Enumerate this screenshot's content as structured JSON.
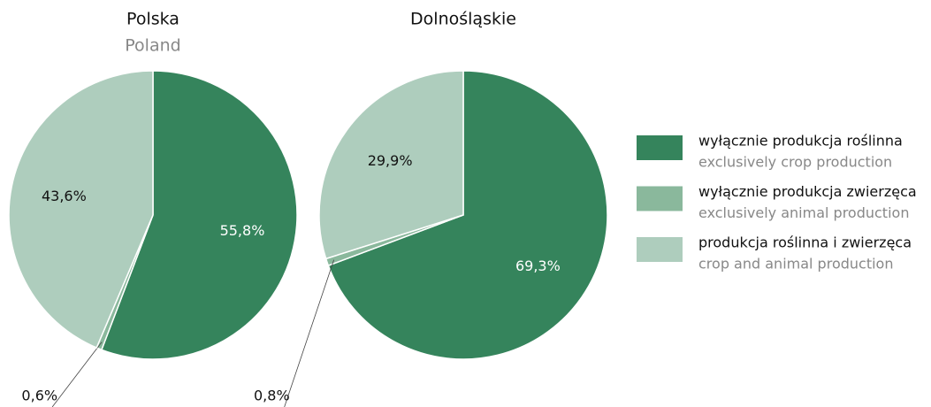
{
  "legend": [
    {
      "label": "wyłącznie produkcja roślinna",
      "sublabel": "exclusively crop production",
      "color": "#35845c"
    },
    {
      "label": "wyłącznie produkcja zwierzęca",
      "sublabel": "exclusively animal production",
      "color": "#8ab89c"
    },
    {
      "label": "produkcja roślinna i zwierzęca",
      "sublabel": "crop and animal production",
      "color": "#aecdbd"
    }
  ],
  "chart_data": [
    {
      "type": "pie",
      "title": "Polska",
      "subtitle": "Poland",
      "values": [
        55.8,
        0.6,
        43.6
      ],
      "value_labels": [
        "55,8%",
        "0,6%",
        "43,6%"
      ]
    },
    {
      "type": "pie",
      "title": "Dolnośląskie",
      "values": [
        69.3,
        0.8,
        29.9
      ],
      "value_labels": [
        "69,3%",
        "0,8%",
        "29,9%"
      ]
    }
  ]
}
